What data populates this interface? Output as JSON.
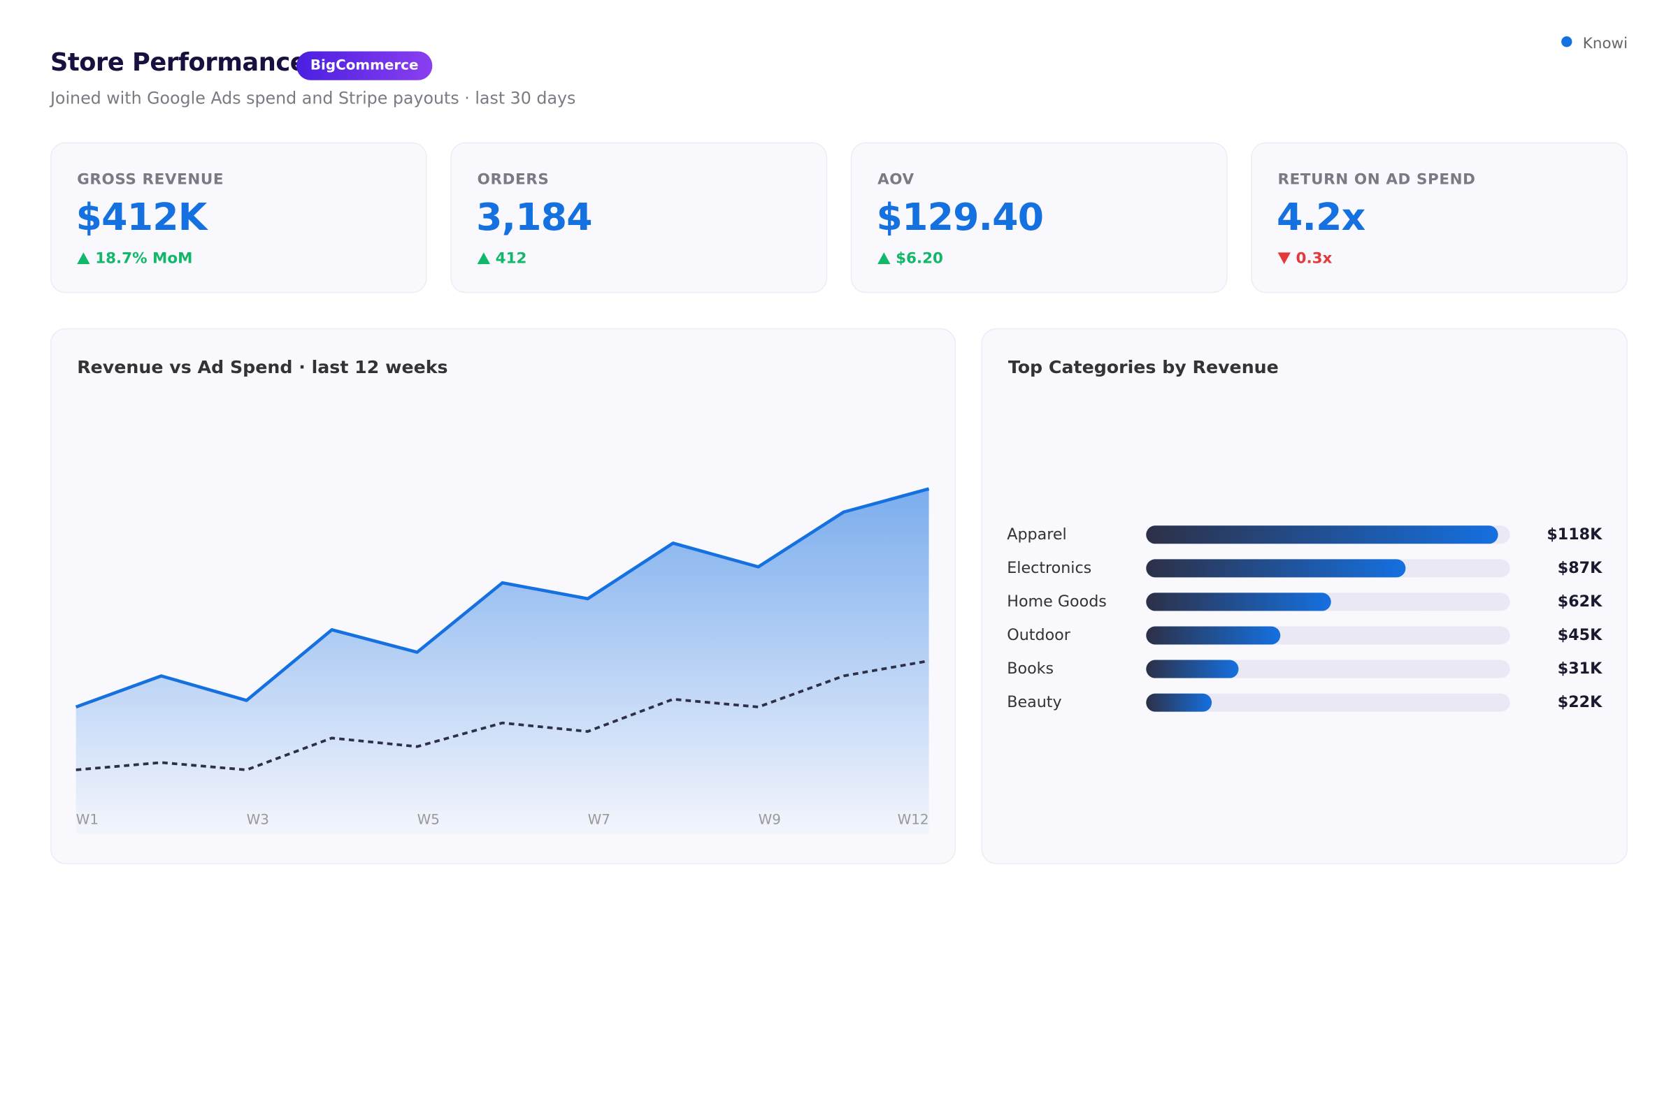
{
  "header": {
    "title": "Store Performance",
    "badge": "BigCommerce",
    "subtitle": "Joined with Google Ads spend and Stripe payouts · last 30 days",
    "brand": "Knowi"
  },
  "kpis": [
    {
      "label": "GROSS REVENUE",
      "value": "$412K",
      "delta": "18.7% MoM",
      "direction": "up"
    },
    {
      "label": "ORDERS",
      "value": "3,184",
      "delta": "412",
      "direction": "up"
    },
    {
      "label": "AOV",
      "value": "$129.40",
      "delta": "$6.20",
      "direction": "up"
    },
    {
      "label": "RETURN ON AD SPEND",
      "value": "4.2x",
      "delta": "0.3x",
      "direction": "down"
    }
  ],
  "chart_data": [
    {
      "type": "area",
      "title": "Revenue vs Ad Spend · last 12 weeks",
      "categories": [
        "W1",
        null,
        "W3",
        null,
        "W5",
        null,
        "W7",
        null,
        "W9",
        null,
        "W12"
      ],
      "ylim": [
        0,
        100
      ],
      "series": [
        {
          "color": "#1570e0",
          "fill": true,
          "values": [
            23.8,
            31.4,
            25.4,
            42.7,
            37.2,
            54.2,
            50.3,
            63.9,
            58.1,
            71.5,
            77.2
          ]
        },
        {
          "color": "#2d3047",
          "dashed": true,
          "values": [
            8.4,
            10.2,
            8.4,
            16.2,
            14.1,
            19.9,
            17.8,
            25.7,
            23.8,
            31.4,
            35.1
          ]
        }
      ]
    },
    {
      "type": "bar",
      "orientation": "horizontal",
      "title": "Top Categories by Revenue",
      "categories": [
        "Apparel",
        "Electronics",
        "Home Goods",
        "Outdoor",
        "Books",
        "Beauty"
      ],
      "values": [
        118,
        87,
        62,
        45,
        31,
        22
      ],
      "value_labels": [
        "$118K",
        "$87K",
        "$62K",
        "$45K",
        "$31K",
        "$22K"
      ],
      "xlim": [
        0,
        122
      ],
      "color": "#1570e0",
      "gradient_start": "#2d3047",
      "track_color": "#ebe8f5"
    }
  ]
}
